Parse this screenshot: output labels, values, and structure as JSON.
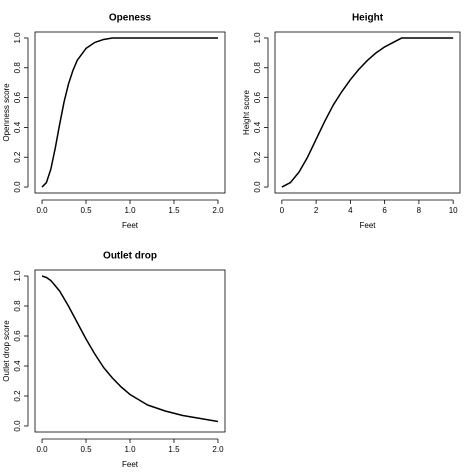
{
  "chart_data": [
    {
      "type": "line",
      "title": "Openess",
      "xlabel": "Feet",
      "ylabel": "Openness score",
      "color": "#000000",
      "x": [
        0,
        0.05,
        0.1,
        0.15,
        0.2,
        0.25,
        0.3,
        0.35,
        0.4,
        0.5,
        0.6,
        0.7,
        0.8,
        1.0,
        1.5,
        2.0
      ],
      "values": [
        0,
        0.03,
        0.12,
        0.26,
        0.42,
        0.57,
        0.69,
        0.78,
        0.85,
        0.93,
        0.97,
        0.99,
        1.0,
        1.0,
        1.0,
        1.0
      ],
      "xlim": [
        -0.08,
        2.08
      ],
      "ylim": [
        -0.04,
        1.04
      ],
      "xticks": [
        {
          "value": 0,
          "label": "0.0"
        },
        0.5,
        {
          "value": 1,
          "label": "1.0"
        },
        1.5,
        {
          "value": 2,
          "label": "2.0"
        }
      ],
      "yticks": [
        {
          "value": 0,
          "label": "0.0"
        },
        0.2,
        0.4,
        0.6,
        0.8,
        {
          "value": 1,
          "label": "1.0"
        }
      ]
    },
    {
      "type": "line",
      "title": "Height",
      "xlabel": "Feet",
      "ylabel": "Height score",
      "color": "#000000",
      "x": [
        0,
        0.5,
        1,
        1.5,
        2,
        2.5,
        3,
        3.5,
        4,
        4.5,
        5,
        5.5,
        6,
        6.5,
        7,
        8,
        9,
        10
      ],
      "values": [
        0,
        0.03,
        0.1,
        0.2,
        0.32,
        0.44,
        0.55,
        0.64,
        0.72,
        0.79,
        0.85,
        0.9,
        0.94,
        0.97,
        1.0,
        1.0,
        1.0,
        1.0
      ],
      "xlim": [
        -0.4,
        10.4
      ],
      "ylim": [
        -0.04,
        1.04
      ],
      "xticks": [
        0,
        2,
        4,
        6,
        8,
        10
      ],
      "yticks": [
        {
          "value": 0,
          "label": "0.0"
        },
        0.2,
        0.4,
        0.6,
        0.8,
        {
          "value": 1,
          "label": "1.0"
        }
      ]
    },
    {
      "type": "line",
      "title": "Outlet drop",
      "xlabel": "Feet",
      "ylabel": "Outlet drop score",
      "color": "#000000",
      "x": [
        0,
        0.05,
        0.1,
        0.2,
        0.3,
        0.4,
        0.5,
        0.6,
        0.7,
        0.8,
        0.9,
        1.0,
        1.2,
        1.4,
        1.6,
        1.8,
        2.0
      ],
      "values": [
        1.0,
        0.99,
        0.97,
        0.9,
        0.8,
        0.69,
        0.58,
        0.48,
        0.39,
        0.32,
        0.26,
        0.21,
        0.14,
        0.1,
        0.07,
        0.05,
        0.03
      ],
      "xlim": [
        -0.08,
        2.08
      ],
      "ylim": [
        -0.04,
        1.04
      ],
      "xticks": [
        {
          "value": 0,
          "label": "0.0"
        },
        0.5,
        {
          "value": 1,
          "label": "1.0"
        },
        1.5,
        {
          "value": 2,
          "label": "2.0"
        }
      ],
      "yticks": [
        {
          "value": 0,
          "label": "0.0"
        },
        0.2,
        0.4,
        0.6,
        0.8,
        {
          "value": 1,
          "label": "1.0"
        }
      ]
    }
  ]
}
